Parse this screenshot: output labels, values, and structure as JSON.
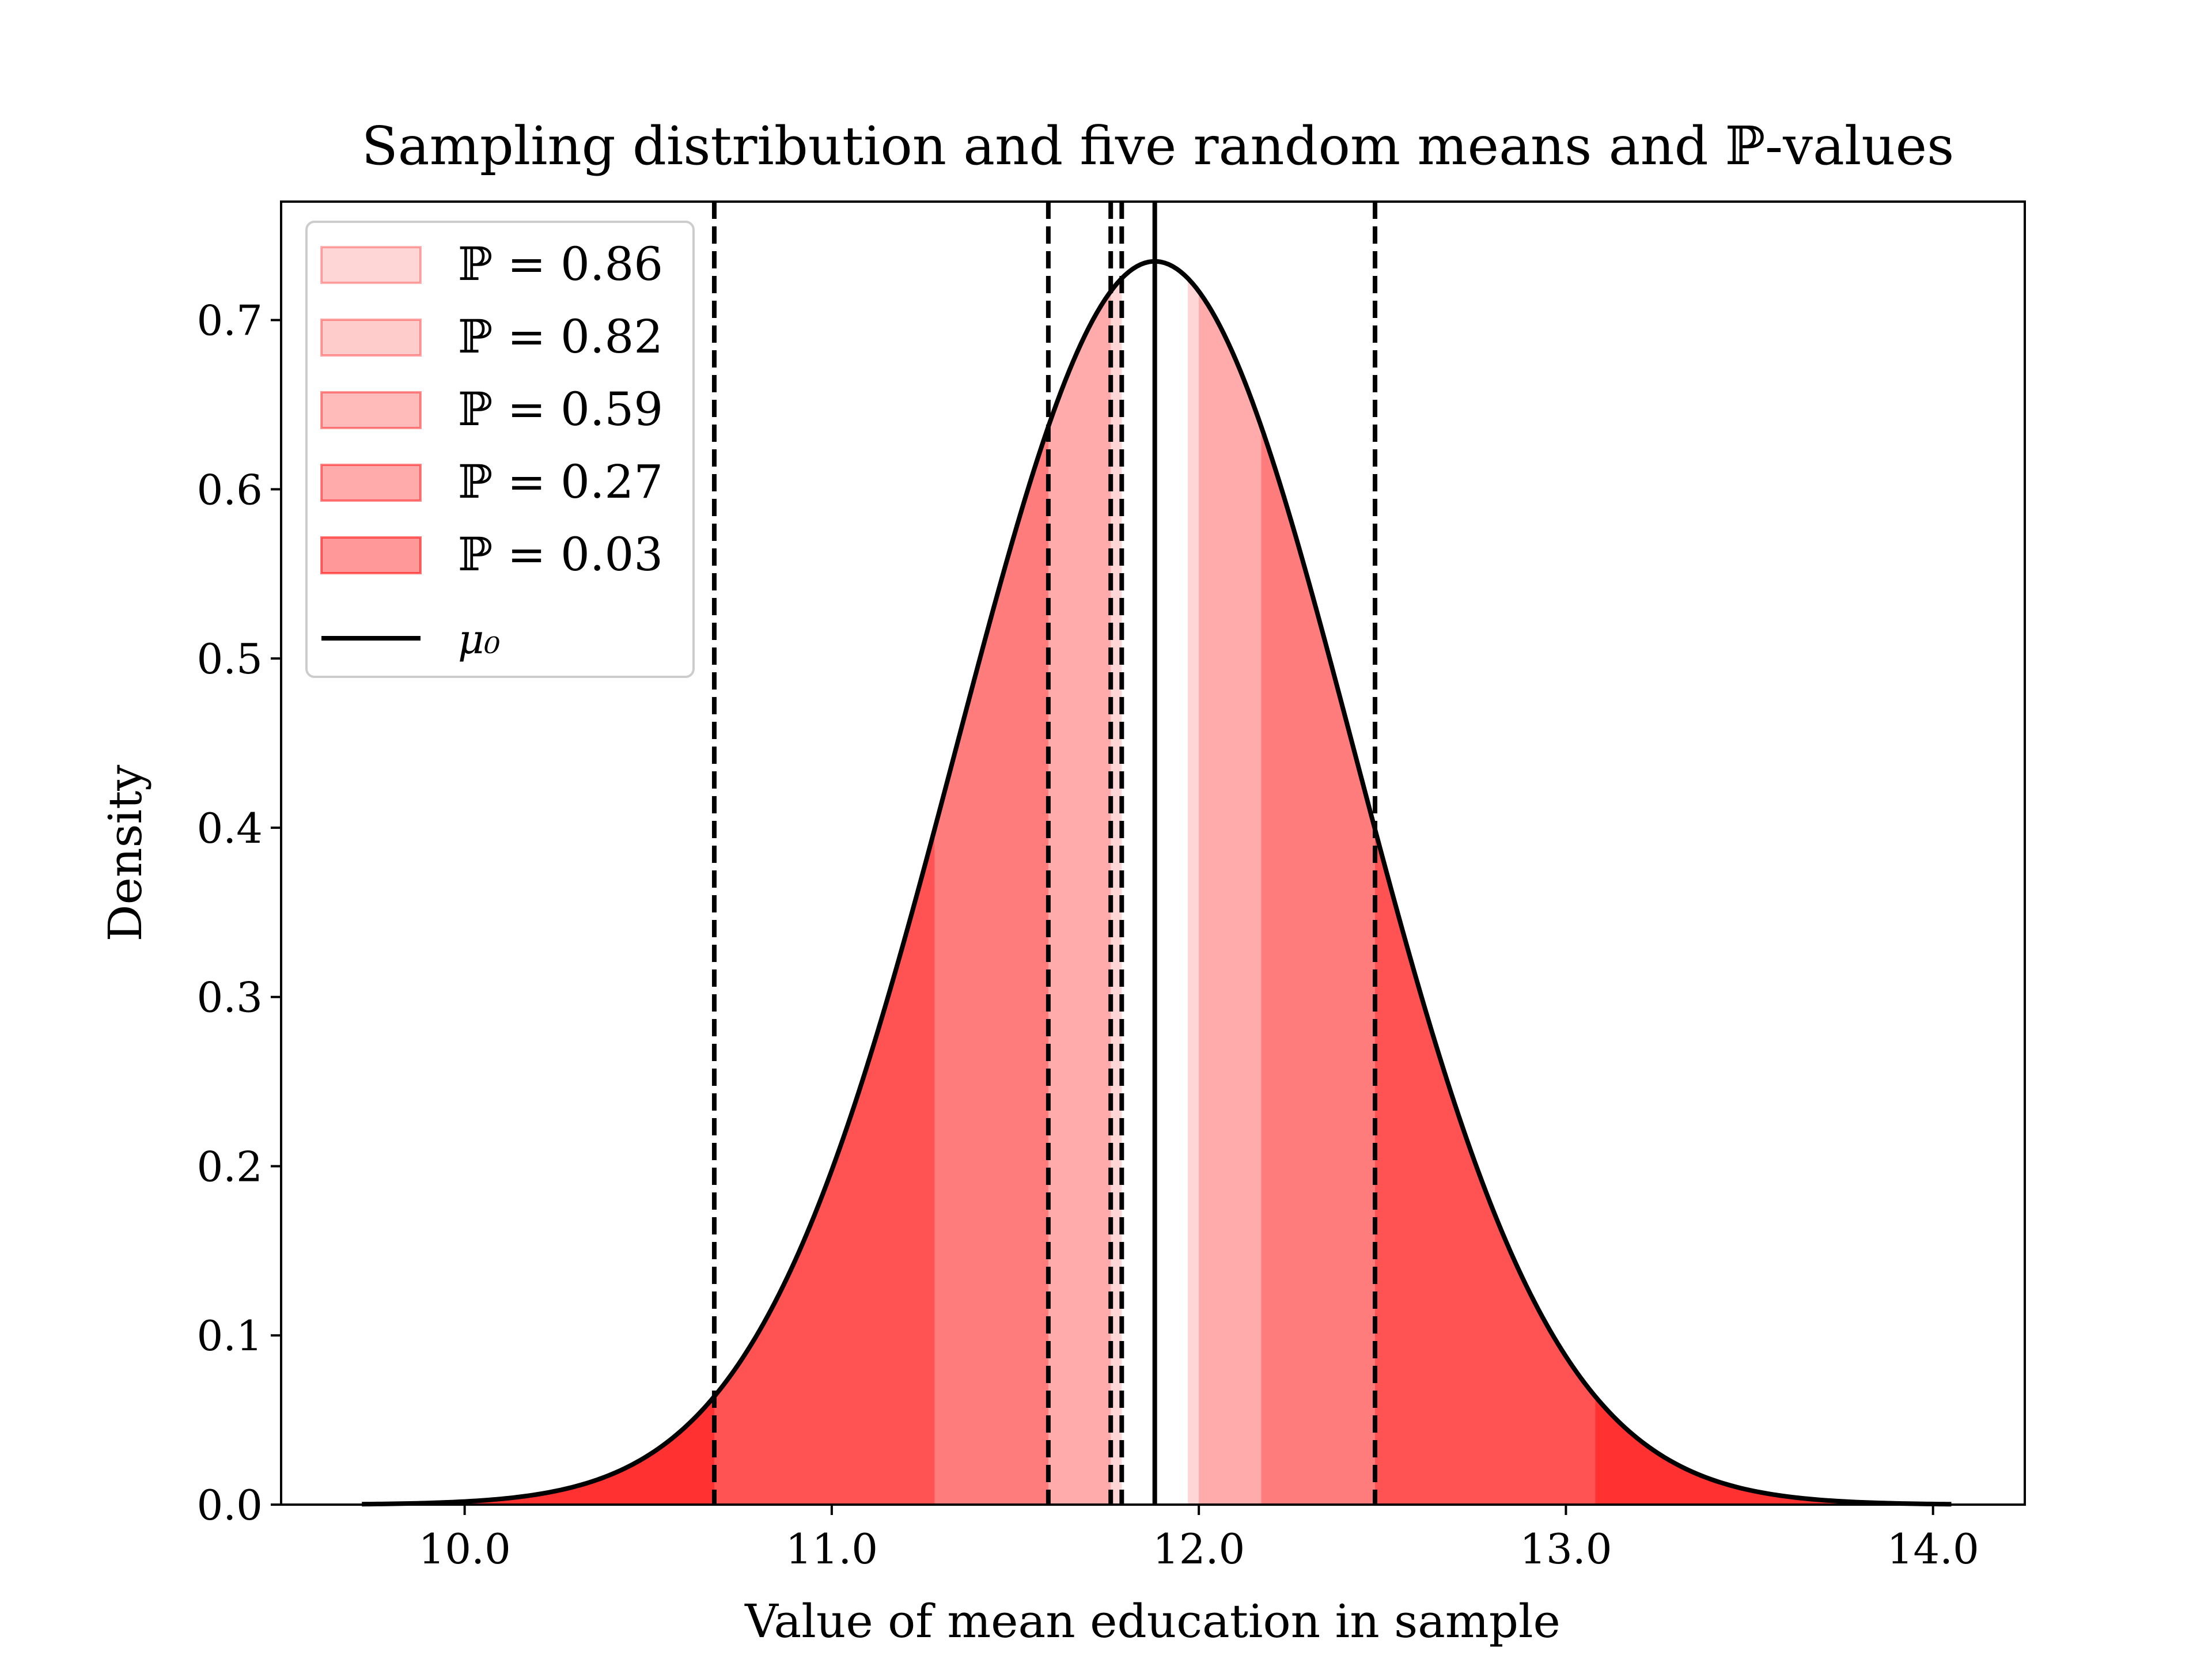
{
  "chart_data": {
    "type": "area",
    "title": "Sampling distribution and five random means and ℙ-values",
    "xlabel": "Value of mean education in sample",
    "ylabel": "Density",
    "xlim": [
      9.5,
      14.25
    ],
    "ylim": [
      0.0,
      0.77
    ],
    "x_ticks": [
      10.0,
      11.0,
      12.0,
      13.0,
      14.0
    ],
    "x_tick_labels": [
      "10.0",
      "11.0",
      "12.0",
      "13.0",
      "14.0"
    ],
    "y_ticks": [
      0.0,
      0.1,
      0.2,
      0.3,
      0.4,
      0.5,
      0.6,
      0.7
    ],
    "y_tick_labels": [
      "0.0",
      "0.1",
      "0.2",
      "0.3",
      "0.4",
      "0.5",
      "0.6",
      "0.7"
    ],
    "grid": false,
    "legend_position": "top-left",
    "distribution": {
      "family": "normal",
      "mean": 11.88,
      "sd": 0.543,
      "x_range": [
        9.72,
        14.05
      ]
    },
    "mu0": {
      "value": 11.88,
      "label": "μ₀"
    },
    "series": [
      {
        "name": "ℙ = 0.86",
        "p_value": 0.86,
        "sample_mean": 11.79,
        "fill_color": "#ff0000",
        "opacity": 0.16
      },
      {
        "name": "ℙ = 0.82",
        "p_value": 0.82,
        "sample_mean": 11.76,
        "fill_color": "#ff0000",
        "opacity": 0.2
      },
      {
        "name": "ℙ = 0.59",
        "p_value": 0.59,
        "sample_mean": 11.59,
        "fill_color": "#ff0000",
        "opacity": 0.27
      },
      {
        "name": "ℙ = 0.27",
        "p_value": 0.27,
        "sample_mean": 12.48,
        "fill_color": "#ff0000",
        "opacity": 0.33
      },
      {
        "name": "ℙ = 0.03",
        "p_value": 0.03,
        "sample_mean": 10.68,
        "fill_color": "#ff0000",
        "opacity": 0.4
      }
    ],
    "colors": {
      "curve": "#000000",
      "fill": "#ff0000",
      "axes": "#000000"
    }
  }
}
